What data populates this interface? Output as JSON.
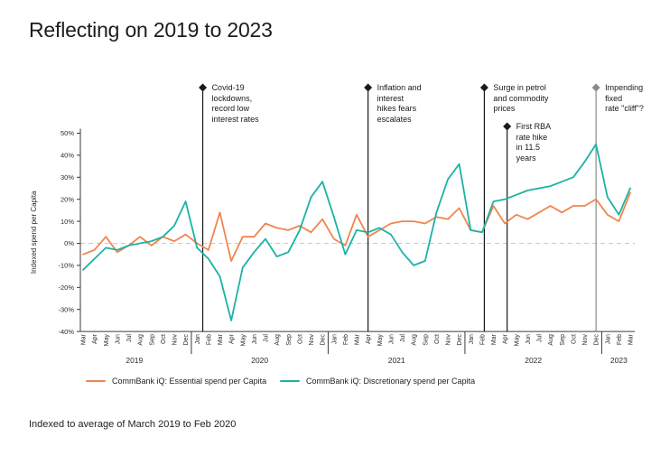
{
  "page": {
    "title": "Reflecting on 2019 to 2023",
    "footnote": "Indexed to average of March 2019 to Feb 2020"
  },
  "chart_data": {
    "type": "line",
    "title": "Reflecting on 2019 to 2023",
    "ylabel": "Indexed spend per Capita",
    "ylim": [
      -40,
      50
    ],
    "ytick_step": 10,
    "ytick_suffix": "%",
    "zero_line": "dashed",
    "grid": false,
    "legend_position": "bottom",
    "x_months": [
      "Mar",
      "Apr",
      "May",
      "Jun",
      "Jul",
      "Aug",
      "Sep",
      "Oct",
      "Nov",
      "Dec",
      "Jan",
      "Feb",
      "Mar",
      "Apr",
      "May",
      "Jun",
      "Jul",
      "Aug",
      "Sep",
      "Oct",
      "Nov",
      "Dec",
      "Jan",
      "Feb",
      "Mar",
      "Apr",
      "May",
      "Jun",
      "Jul",
      "Aug",
      "Sep",
      "Oct",
      "Nov",
      "Dec",
      "Jan",
      "Feb",
      "Mar",
      "Apr",
      "May",
      "Jun",
      "Jul",
      "Aug",
      "Sep",
      "Oct",
      "Nov",
      "Dec",
      "Jan",
      "Feb",
      "Mar"
    ],
    "year_groups": [
      {
        "label": "2019",
        "start": 0,
        "end": 9
      },
      {
        "label": "2020",
        "start": 10,
        "end": 21
      },
      {
        "label": "2021",
        "start": 22,
        "end": 33
      },
      {
        "label": "2022",
        "start": 34,
        "end": 45
      },
      {
        "label": "2023",
        "start": 46,
        "end": 48
      }
    ],
    "series": [
      {
        "name": "CommBank iQ: Essential spend per Capita",
        "color": "#F0854E",
        "values": [
          -5,
          -3,
          3,
          -4,
          -1,
          3,
          -1,
          3,
          1,
          4,
          0,
          -3,
          14,
          -8,
          3,
          3,
          9,
          7,
          6,
          8,
          5,
          11,
          2,
          -1,
          13,
          3,
          6,
          9,
          10,
          10,
          9,
          12,
          11,
          16,
          6,
          5,
          17,
          9,
          13,
          11,
          14,
          17,
          14,
          17,
          17,
          20,
          13,
          10,
          23
        ]
      },
      {
        "name": "CommBank iQ: Discretionary spend per Capita",
        "color": "#1CB2A6",
        "values": [
          -12,
          -7,
          -2,
          -3,
          -1,
          0,
          1,
          3,
          8,
          19,
          -2,
          -7,
          -15,
          -35,
          -11,
          -4,
          2,
          -6,
          -4,
          6,
          21,
          28,
          12,
          -5,
          6,
          5,
          7,
          4,
          -4,
          -10,
          -8,
          14,
          29,
          36,
          6,
          5,
          19,
          20,
          22,
          24,
          25,
          26,
          28,
          30,
          37,
          45,
          21,
          13,
          25
        ]
      }
    ],
    "annotations": [
      {
        "text": "Covid-19\nlockdowns,\nrecord low\ninterest rates",
        "month_index": 10.5,
        "level": 1,
        "line_color": "#1a1a1a"
      },
      {
        "text": "Inflation and\ninterest\nhikes fears\nescalates",
        "month_index": 25,
        "level": 1,
        "line_color": "#1a1a1a"
      },
      {
        "text": "Surge in petrol\nand commodity\nprices",
        "month_index": 35.2,
        "level": 1,
        "line_color": "#1a1a1a"
      },
      {
        "text": "First RBA\nrate hike\nin 11.5\nyears",
        "month_index": 37.2,
        "level": 2,
        "line_color": "#1a1a1a"
      },
      {
        "text": "Impending\nfixed\nrate \"cliff\"?",
        "month_index": 45,
        "level": 1,
        "line_color": "#8a8a8a"
      }
    ],
    "axis_color": "#3a3a3a",
    "zero_line_color": "#c9c9c9"
  }
}
